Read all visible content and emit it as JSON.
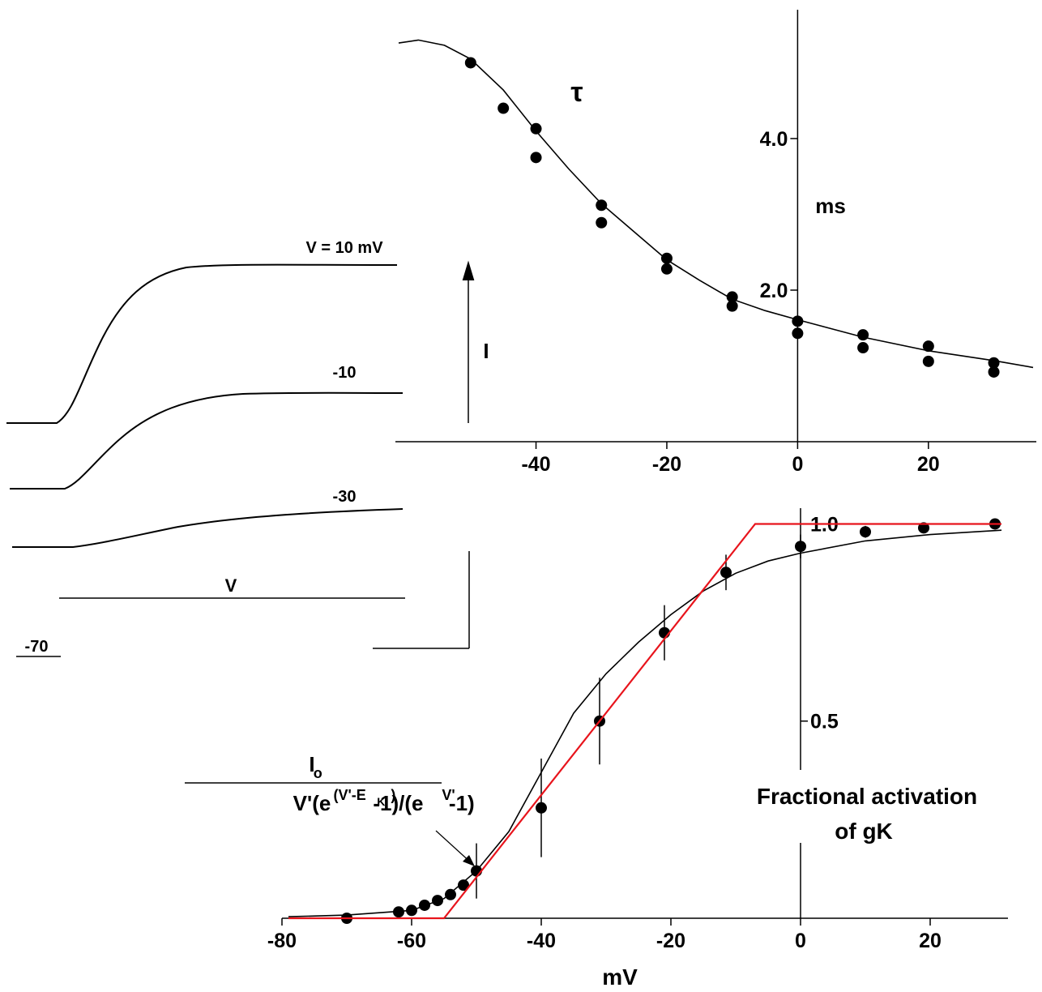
{
  "chart_data": [
    {
      "type": "scatter",
      "annotation": "τ",
      "ylabel": "ms",
      "xlim": [
        -61.5,
        36.5
      ],
      "ylim": [
        0,
        5.7
      ],
      "xticks": [
        -40,
        -20,
        0,
        20
      ],
      "yticks": [
        {
          "value": 2,
          "label": "2.0"
        },
        {
          "value": 4,
          "label": "4.0"
        }
      ],
      "ytick_side": "left",
      "series": [
        {
          "kind": "points",
          "color": "#000000",
          "x": [
            -50,
            -45,
            -40,
            -40,
            -30,
            -30,
            -20,
            -20,
            -10,
            -10,
            0,
            0,
            10,
            10,
            20,
            20,
            30,
            30
          ],
          "values": [
            5.0,
            4.4,
            4.13,
            3.75,
            3.12,
            2.89,
            2.42,
            2.28,
            1.91,
            1.79,
            1.59,
            1.43,
            1.41,
            1.24,
            1.26,
            1.06,
            1.04,
            0.92
          ]
        },
        {
          "kind": "line",
          "color": "#000000",
          "x": [
            -61,
            -58,
            -54,
            -50,
            -45,
            -40,
            -35,
            -30,
            -25,
            -20,
            -15,
            -10,
            -5,
            0,
            10,
            20,
            30,
            36
          ],
          "values": [
            5.26,
            5.3,
            5.23,
            5.05,
            4.64,
            4.1,
            3.6,
            3.14,
            2.77,
            2.4,
            2.13,
            1.88,
            1.73,
            1.61,
            1.38,
            1.2,
            1.07,
            0.98
          ]
        }
      ]
    },
    {
      "type": "scatter",
      "xlabel": "mV",
      "ylabel": [
        "Fractional activation",
        "of gK"
      ],
      "xlim": [
        -80,
        32
      ],
      "ylim": [
        0,
        1.04
      ],
      "xticks": [
        -80,
        -60,
        -40,
        -20,
        0,
        20
      ],
      "yticks": [
        0.5,
        {
          "value": 1,
          "label": "1.0"
        }
      ],
      "ytick_side": "right",
      "formula": {
        "numerator": [
          {
            "text": "I",
            "pos": "base"
          },
          {
            "text": "o",
            "pos": "sub"
          }
        ],
        "denominator": [
          {
            "text": "V'(e",
            "pos": "base"
          },
          {
            "text": "(V'-E",
            "pos": "sup"
          },
          {
            "text": "K'",
            "pos": "supsub"
          },
          {
            "text": ")",
            "pos": "sup"
          },
          {
            "text": "-1)/(e",
            "pos": "base"
          },
          {
            "text": "V'",
            "pos": "sup"
          },
          {
            "text": "-1)",
            "pos": "base"
          }
        ]
      },
      "series": [
        {
          "kind": "points",
          "color": "#000000",
          "x": [
            -70,
            -62,
            -60,
            -58,
            -56,
            -54,
            -52,
            -50,
            -40,
            -31,
            -21,
            -11.5,
            0,
            10,
            19,
            30
          ],
          "values": [
            0,
            0.016,
            0.02,
            0.033,
            0.045,
            0.06,
            0.084,
            0.12,
            0.28,
            0.5,
            0.724,
            0.877,
            0.943,
            0.98,
            0.99,
            1.0
          ],
          "errors": [
            null,
            null,
            null,
            null,
            null,
            null,
            null,
            0.07,
            0.125,
            0.11,
            0.07,
            0.045,
            0.03,
            0.015,
            null,
            null
          ]
        },
        {
          "kind": "line",
          "color": "#000000",
          "x": [
            -79,
            -70,
            -60,
            -55,
            -50,
            -45,
            -40,
            -35,
            -30,
            -25,
            -20,
            -15,
            -10,
            -5,
            0,
            10,
            20,
            31
          ],
          "values": [
            0.004,
            0.008,
            0.02,
            0.05,
            0.12,
            0.22,
            0.37,
            0.52,
            0.62,
            0.7,
            0.77,
            0.83,
            0.875,
            0.906,
            0.926,
            0.957,
            0.973,
            0.984
          ]
        },
        {
          "kind": "line",
          "color": "#e8141c",
          "x": [
            -79,
            -55,
            -7,
            31
          ],
          "values": [
            0,
            0,
            1.0,
            1.0
          ]
        }
      ]
    }
  ],
  "traces_panel": {
    "trace_labels": [
      "V = 10 mV",
      "-10",
      "-30"
    ],
    "current_label": "I",
    "voltage_label": "V",
    "holding_label": "-70"
  }
}
